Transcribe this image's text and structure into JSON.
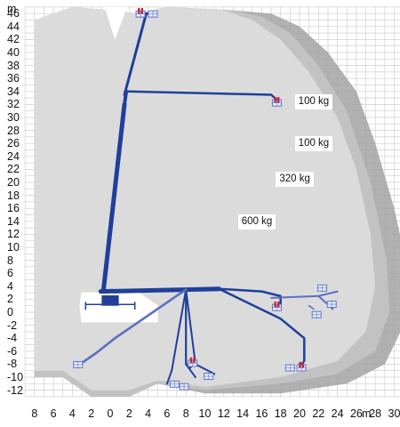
{
  "chart_data": {
    "type": "working-range-diagram",
    "y_axis": {
      "unit": "m",
      "ticks": [
        "46",
        "44",
        "42",
        "40",
        "38",
        "36",
        "34",
        "32",
        "30",
        "28",
        "26",
        "24",
        "22",
        "20",
        "18",
        "16",
        "14",
        "12",
        "10",
        "8",
        "6",
        "4",
        "2",
        "0",
        "-2",
        "-4",
        "-6",
        "-8",
        "-10",
        "-12"
      ]
    },
    "x_axis": {
      "unit": "m",
      "ticks": [
        "8",
        "6",
        "4",
        "2",
        "0",
        "2",
        "4",
        "6",
        "8",
        "10",
        "12",
        "14",
        "16",
        "18",
        "20",
        "22",
        "24",
        "26",
        "28",
        "30"
      ]
    },
    "capacity_zones": [
      {
        "label": "100 kg",
        "x": 19.5,
        "y": 32.5
      },
      {
        "label": "100 kg",
        "x": 19.5,
        "y": 26.0
      },
      {
        "label": "320 kg",
        "x": 17.5,
        "y": 20.5
      },
      {
        "label": "600 kg",
        "x": 13.5,
        "y": 14.0
      }
    ],
    "colors": {
      "boom_primary": "#1f3f9a",
      "boom_secondary": "#5a6fc0",
      "envelope_outer": "#a3a3a3",
      "envelope_mid": "#c4c4c4",
      "envelope_inner": "#dcdcdc",
      "grid": "#cfcfcf",
      "platform_frame": "#5e76d0",
      "platform_person": "#c0283a"
    }
  }
}
